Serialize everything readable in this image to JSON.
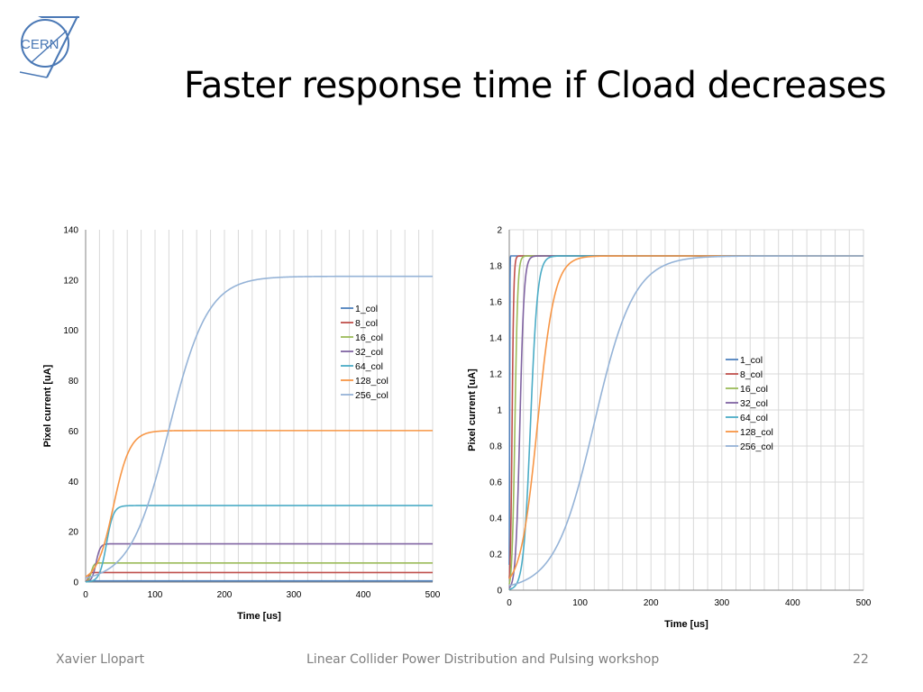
{
  "logo": {
    "text": "CERN",
    "icon": "cern-logo"
  },
  "title": "Faster response time if Cload decreases",
  "footer": {
    "author": "Xavier Llopart",
    "event": "Linear Collider Power Distribution and Pulsing workshop",
    "page": "22"
  },
  "chart_data": [
    {
      "type": "line",
      "xlabel": "Time [us]",
      "ylabel": "Pixel current [uA]",
      "xlim": [
        0,
        500
      ],
      "ylim": [
        0,
        140
      ],
      "xticks": [
        0,
        100,
        200,
        300,
        400,
        500
      ],
      "yticks": [
        0,
        20,
        40,
        60,
        80,
        100,
        120,
        140
      ],
      "grid": "vertical",
      "legend": "top-right",
      "series": [
        {
          "name": "1_col",
          "color": "#4f81bd",
          "plateau": 0.47,
          "midpoint": 0.5,
          "width": 0.2
        },
        {
          "name": "8_col",
          "color": "#c0504d",
          "plateau": 3.8,
          "midpoint": 4,
          "width": 1.2
        },
        {
          "name": "16_col",
          "color": "#9bbb59",
          "plateau": 7.6,
          "midpoint": 8,
          "width": 2
        },
        {
          "name": "32_col",
          "color": "#8064a2",
          "plateau": 15.2,
          "midpoint": 15,
          "width": 3
        },
        {
          "name": "64_col",
          "color": "#4bacc6",
          "plateau": 30.4,
          "midpoint": 30,
          "width": 5
        },
        {
          "name": "128_col",
          "color": "#f79646",
          "plateau": 60.2,
          "midpoint": 40,
          "width": 12
        },
        {
          "name": "256_col",
          "color": "#95b3d7",
          "plateau": 121.5,
          "midpoint": 120,
          "width": 28
        }
      ]
    },
    {
      "type": "line",
      "xlabel": "Time [us]",
      "ylabel": "Pixel current [uA]",
      "xlim": [
        0,
        500
      ],
      "ylim": [
        0,
        2
      ],
      "xticks": [
        0,
        100,
        200,
        300,
        400,
        500
      ],
      "yticks": [
        0,
        0.2,
        0.4,
        0.6,
        0.8,
        1,
        1.2,
        1.4,
        1.6,
        1.8,
        2
      ],
      "grid": "both",
      "legend": "center-right",
      "series": [
        {
          "name": "1_col",
          "color": "#4f81bd",
          "plateau": 1.855,
          "midpoint": 0.5,
          "width": 0.2
        },
        {
          "name": "8_col",
          "color": "#c0504d",
          "plateau": 1.855,
          "midpoint": 4,
          "width": 1.2
        },
        {
          "name": "16_col",
          "color": "#9bbb59",
          "plateau": 1.855,
          "midpoint": 8,
          "width": 2
        },
        {
          "name": "32_col",
          "color": "#8064a2",
          "plateau": 1.855,
          "midpoint": 15,
          "width": 3
        },
        {
          "name": "64_col",
          "color": "#4bacc6",
          "plateau": 1.855,
          "midpoint": 30,
          "width": 5
        },
        {
          "name": "128_col",
          "color": "#f79646",
          "plateau": 1.855,
          "midpoint": 40,
          "width": 12
        },
        {
          "name": "256_col",
          "color": "#95b3d7",
          "plateau": 1.855,
          "midpoint": 120,
          "width": 28
        }
      ]
    }
  ]
}
